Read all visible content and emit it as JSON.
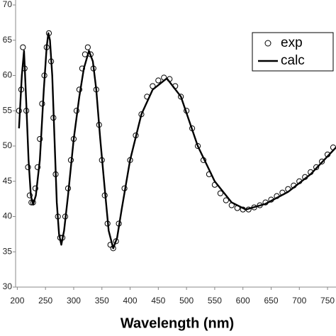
{
  "chart_data": {
    "type": "line",
    "x_label": "Wavelength (nm)",
    "xlim": [
      197,
      765
    ],
    "ylim": [
      30,
      70
    ],
    "xticks": [
      200,
      250,
      300,
      350,
      400,
      450,
      500,
      550,
      600,
      650,
      700,
      750
    ],
    "yticks": [
      30,
      35,
      40,
      45,
      50,
      55,
      60,
      65,
      70
    ],
    "legend": "upper right",
    "series": [
      {
        "name": "exp",
        "style": "markers",
        "color": "#000000",
        "x": [
          203,
          207,
          210,
          213,
          216,
          219,
          222,
          225,
          228,
          232,
          236,
          240,
          244,
          248,
          252,
          256,
          260,
          264,
          268,
          272,
          276,
          280,
          285,
          290,
          295,
          300,
          305,
          310,
          315,
          320,
          325,
          330,
          335,
          340,
          345,
          350,
          355,
          360,
          365,
          370,
          375,
          380,
          390,
          400,
          410,
          420,
          430,
          440,
          450,
          460,
          470,
          480,
          490,
          500,
          510,
          520,
          530,
          540,
          550,
          560,
          570,
          580,
          590,
          600,
          610,
          620,
          630,
          640,
          650,
          660,
          670,
          680,
          690,
          700,
          710,
          720,
          730,
          740,
          750,
          760
        ],
        "values": [
          55,
          58,
          64,
          61,
          55,
          47,
          43,
          42,
          42,
          44,
          47,
          51,
          56,
          60,
          64,
          66,
          62,
          54,
          46,
          40,
          37,
          37,
          40,
          44,
          48,
          51,
          55,
          58,
          61,
          63,
          64,
          63,
          61,
          58,
          53,
          48,
          43,
          39,
          36,
          35.5,
          36.5,
          39,
          44,
          48,
          51.5,
          54.5,
          57,
          58.5,
          59.3,
          59.7,
          59.5,
          58.5,
          57,
          55,
          52.5,
          50,
          48,
          46,
          44.5,
          43.3,
          42.3,
          41.6,
          41.2,
          41,
          41,
          41.3,
          41.6,
          42,
          42.4,
          42.9,
          43.4,
          43.9,
          44.4,
          45,
          45.6,
          46.3,
          47,
          47.8,
          48.8,
          49.8
        ]
      },
      {
        "name": "calc",
        "style": "line",
        "color": "#000000",
        "x": [
          203,
          208,
          212,
          216,
          220,
          224,
          228,
          233,
          240,
          247,
          252,
          255,
          258,
          262,
          266,
          270,
          274,
          278,
          283,
          290,
          300,
          310,
          318,
          327,
          334,
          340,
          347,
          355,
          362,
          370,
          377,
          385,
          400,
          420,
          440,
          465,
          490,
          520,
          550,
          580,
          605,
          640,
          680,
          720,
          765
        ],
        "values": [
          52.5,
          60,
          63.5,
          56,
          48,
          43,
          41.7,
          43,
          48,
          58,
          64,
          66,
          65,
          60,
          51,
          42,
          37.5,
          36,
          38,
          43,
          51,
          57,
          61,
          63.5,
          62,
          58,
          51,
          44,
          38,
          35.5,
          37,
          41,
          48,
          54.5,
          58,
          59.6,
          57,
          50,
          45,
          42,
          41,
          41.8,
          43.5,
          46,
          49.8
        ]
      }
    ]
  }
}
